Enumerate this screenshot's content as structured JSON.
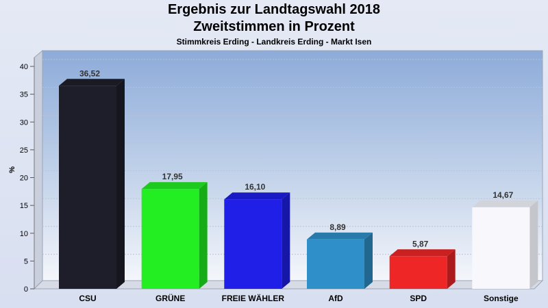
{
  "chart_data": {
    "type": "bar",
    "title": "Ergebnis zur Landtagswahl 2018",
    "subtitle": "Zweitstimmen in Prozent",
    "subsubtitle": "Stimmkreis Erding - Landkreis Erding - Markt Isen",
    "ylabel": "%",
    "ylim": [
      0,
      40
    ],
    "yticks": [
      0,
      5,
      10,
      15,
      20,
      25,
      30,
      35,
      40
    ],
    "categories": [
      "CSU",
      "GRÜNE",
      "FREIE WÄHLER",
      "AfD",
      "SPD",
      "Sonstige"
    ],
    "values": [
      36.52,
      17.95,
      16.1,
      8.89,
      5.87,
      14.67
    ],
    "value_labels": [
      "36,52",
      "17,95",
      "16,10",
      "8,89",
      "5,87",
      "14,67"
    ],
    "colors": [
      "#1e1e2a",
      "#22ee22",
      "#1f1fe8",
      "#2f8fc8",
      "#ee2626",
      "#f8f8fc"
    ],
    "grid": true
  }
}
